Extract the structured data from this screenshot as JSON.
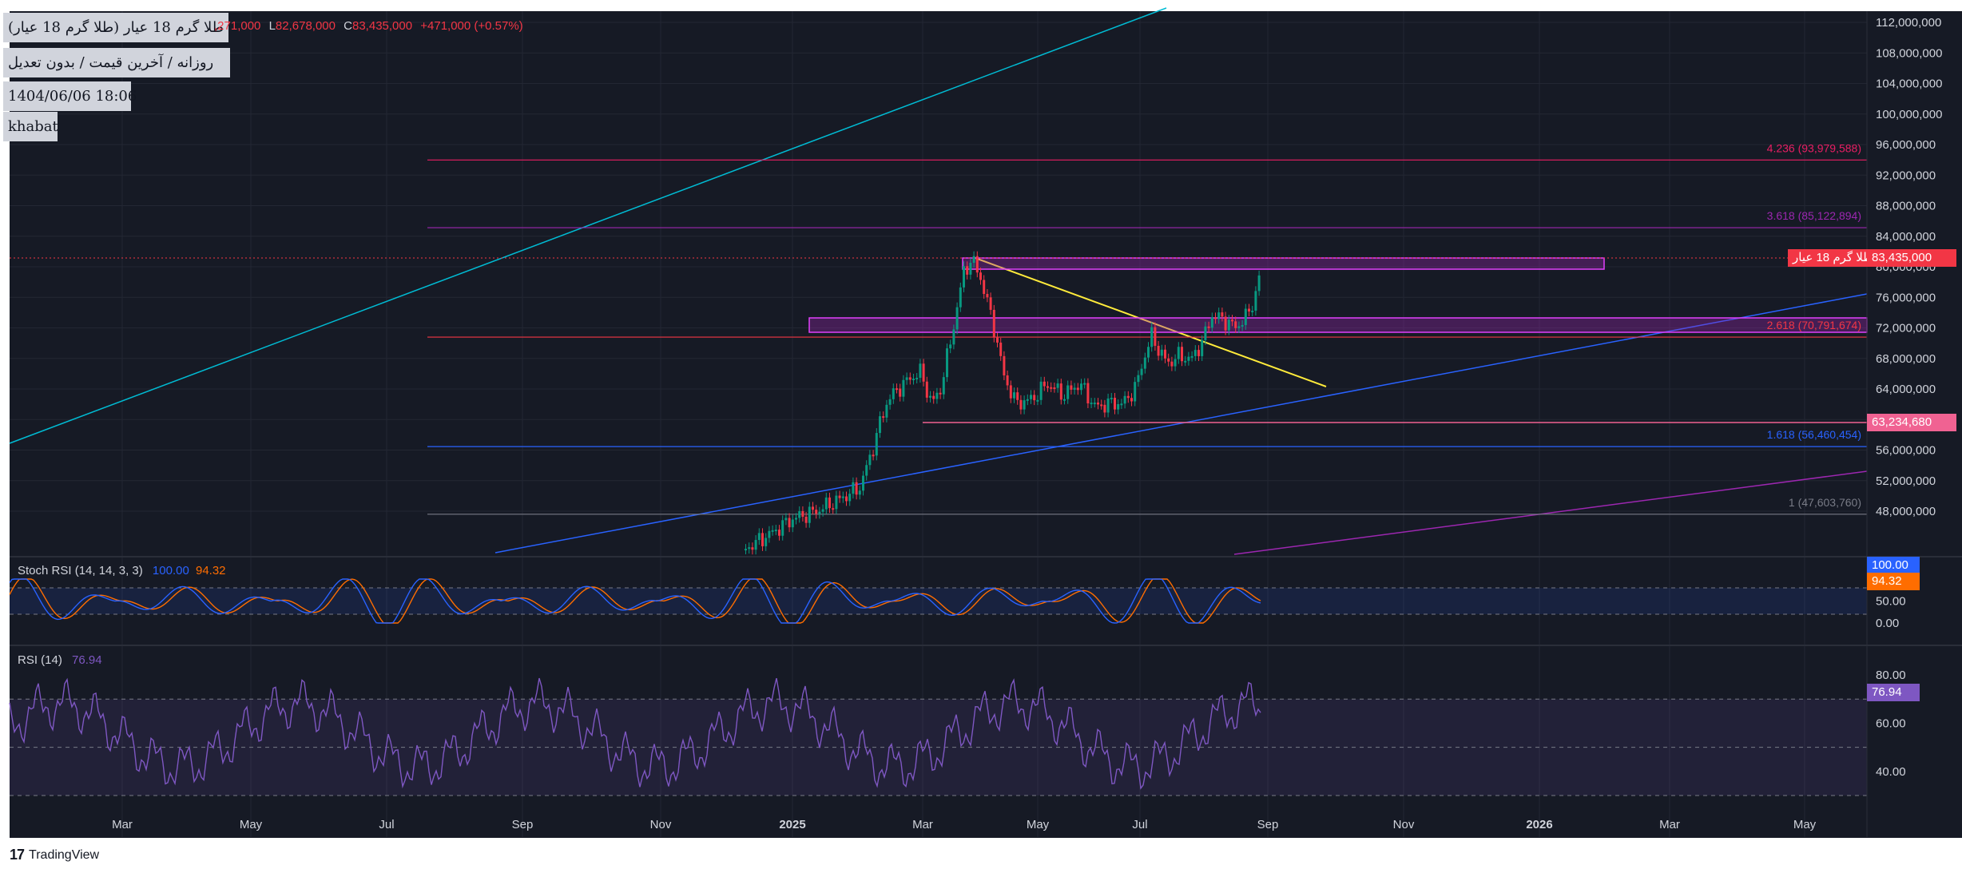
{
  "symbol": {
    "title": "طلا گرم 18 عیار (طلا گرم 18 عیار)",
    "interval": "روزانه / آخرین قیمت / بدون تعدیل",
    "datetime": "1404/06/06 18:06",
    "author": "khabat"
  },
  "ohlc": {
    "high_label": "H",
    "high": ",271,000",
    "low_label": "L",
    "low": "82,678,000",
    "close_label": "C",
    "close": "83,435,000",
    "change": "+471,000 (+0.57%)"
  },
  "price_axis": {
    "ticks": [
      "112,000,000",
      "108,000,000",
      "104,000,000",
      "100,000,000",
      "96,000,000",
      "92,000,000",
      "88,000,000",
      "84,000,000",
      "80,000,000",
      "76,000,000",
      "72,000,000",
      "68,000,000",
      "64,000,000",
      "60,000,000",
      "56,000,000",
      "52,000,000",
      "48,000,000"
    ],
    "tick_values": [
      112,
      108,
      104,
      100,
      96,
      92,
      88,
      84,
      80,
      76,
      72,
      68,
      64,
      60,
      56,
      52,
      48
    ],
    "current_price": "83,435,000",
    "current_price_name": "طلا گرم 18 عیار",
    "marked_price": "63,234,680"
  },
  "fib_levels": [
    {
      "label": "4.236 (93,979,588)",
      "value": 93.98,
      "color": "#e91e63"
    },
    {
      "label": "3.618 (85,122,894)",
      "value": 85.12,
      "color": "#9c27b0"
    },
    {
      "label": "2.618 (70,791,674)",
      "value": 70.79,
      "color": "#f23645"
    },
    {
      "label": "1.618 (56,460,454)",
      "value": 56.46,
      "color": "#2962ff"
    },
    {
      "label": "1 (47,603,760)",
      "value": 47.6,
      "color": "#787b86"
    }
  ],
  "time_axis": {
    "labels": [
      "Mar",
      "May",
      "Jul",
      "Sep",
      "Nov",
      "2025",
      "Mar",
      "May",
      "Jul",
      "Sep",
      "Nov",
      "2026",
      "Mar",
      "May"
    ],
    "bold": [
      false,
      false,
      false,
      false,
      false,
      true,
      false,
      false,
      false,
      false,
      false,
      true,
      false,
      false
    ]
  },
  "stoch_rsi": {
    "title": "Stoch RSI (14, 14, 3, 3)",
    "k": "100.00",
    "d": "94.32",
    "k_color": "#2962ff",
    "d_color": "#ff6d00",
    "axis": [
      "50.00",
      "0.00"
    ]
  },
  "rsi": {
    "title": "RSI (14)",
    "value": "76.94",
    "color": "#7e57c2",
    "axis": [
      "80.00",
      "60.00",
      "40.00"
    ]
  },
  "brand": {
    "name": "TradingView",
    "logo": "17"
  },
  "colors": {
    "up": "#089981",
    "down": "#f23645",
    "background": "#161a25",
    "zone": "#9c27b0",
    "trendline": "#ffeb3b"
  }
}
